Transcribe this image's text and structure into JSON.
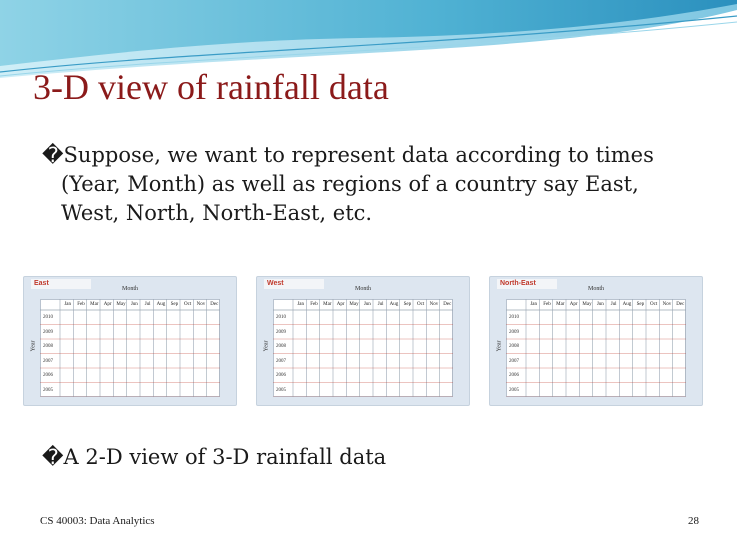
{
  "slide": {
    "title": "3-D view of rainfall data",
    "bullets": [
      {
        "glyph": "�",
        "lines": [
          "Suppose, we want to represent data according to times",
          "(Year, Month) as well as regions of a country say East,",
          "West, North, North-East, etc."
        ]
      },
      {
        "glyph": "�",
        "lines": [
          "A 2-D view of 3-D rainfall data"
        ]
      }
    ],
    "footer_left": "CS 40003: Data Analytics",
    "footer_right": "28"
  },
  "tables": [
    {
      "region": "East",
      "axis_label": "Month",
      "row_axis_label": "Year",
      "months": [
        "Jan",
        "Feb",
        "Mar",
        "Apr",
        "May",
        "Jun",
        "Jul",
        "Aug",
        "Sep",
        "Oct",
        "Nov",
        "Dec"
      ],
      "years": [
        "2010",
        "2009",
        "2008",
        "2007",
        "2006",
        "2005"
      ]
    },
    {
      "region": "West",
      "axis_label": "Month",
      "row_axis_label": "Year",
      "months": [
        "Jan",
        "Feb",
        "Mar",
        "Apr",
        "May",
        "Jun",
        "Jul",
        "Aug",
        "Sep",
        "Oct",
        "Nov",
        "Dec"
      ],
      "years": [
        "2010",
        "2009",
        "2008",
        "2007",
        "2006",
        "2005"
      ]
    },
    {
      "region": "North-East",
      "axis_label": "Month",
      "row_axis_label": "Year",
      "months": [
        "Jan",
        "Feb",
        "Mar",
        "Apr",
        "May",
        "Jun",
        "Jul",
        "Aug",
        "Sep",
        "Oct",
        "Nov",
        "Dec"
      ],
      "years": [
        "2010",
        "2009",
        "2008",
        "2007",
        "2006",
        "2005"
      ]
    }
  ],
  "colors": {
    "title": "#8b1a1a",
    "header_blue": "#5fb8d6",
    "table_accent": "#c0392b"
  }
}
